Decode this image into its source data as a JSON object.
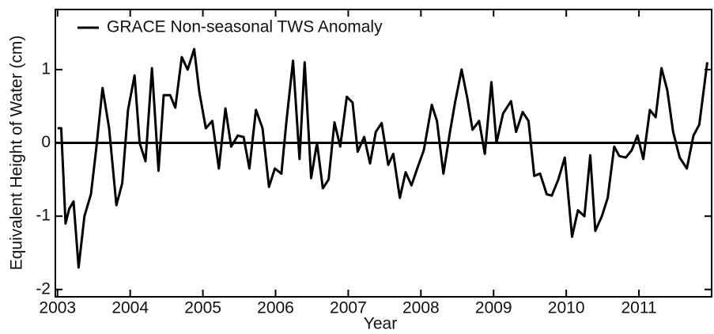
{
  "chart_data": {
    "type": "line",
    "xlabel": "Year",
    "ylabel": "Equivalent Height of Water (cm)",
    "xlim": [
      2002.97,
      2012.0
    ],
    "ylim": [
      -2.1,
      1.82
    ],
    "xticks": [
      2003,
      2004,
      2005,
      2006,
      2007,
      2008,
      2009,
      2010,
      2011
    ],
    "yticks": [
      -2,
      -1,
      0,
      1
    ],
    "hline": 0,
    "legend": "upper left",
    "series": [
      {
        "name": "GRACE Non-seasonal TWS Anomaly",
        "color": "#000000",
        "x": [
          2003.0,
          2003.05,
          2003.11,
          2003.16,
          2003.22,
          2003.29,
          2003.37,
          2003.46,
          2003.53,
          2003.62,
          2003.71,
          2003.81,
          2003.89,
          2003.97,
          2004.06,
          2004.13,
          2004.21,
          2004.3,
          2004.39,
          2004.46,
          2004.55,
          2004.62,
          2004.71,
          2004.79,
          2004.88,
          2004.95,
          2005.04,
          2005.13,
          2005.22,
          2005.31,
          2005.39,
          2005.48,
          2005.56,
          2005.64,
          2005.73,
          2005.82,
          2005.91,
          2005.99,
          2006.08,
          2006.15,
          2006.24,
          2006.33,
          2006.4,
          2006.49,
          2006.57,
          2006.65,
          2006.73,
          2006.81,
          2006.89,
          2006.98,
          2007.06,
          2007.13,
          2007.22,
          2007.3,
          2007.38,
          2007.46,
          2007.55,
          2007.62,
          2007.71,
          2007.79,
          2007.87,
          2007.95,
          2008.04,
          2008.15,
          2008.22,
          2008.31,
          2008.4,
          2008.47,
          2008.56,
          2008.64,
          2008.71,
          2008.8,
          2008.88,
          2008.97,
          2009.04,
          2009.13,
          2009.24,
          2009.31,
          2009.4,
          2009.48,
          2009.56,
          2009.64,
          2009.73,
          2009.8,
          2009.89,
          2009.98,
          2010.08,
          2010.16,
          2010.25,
          2010.33,
          2010.4,
          2010.49,
          2010.57,
          2010.66,
          2010.73,
          2010.82,
          2010.9,
          2010.98,
          2011.06,
          2011.15,
          2011.23,
          2011.31,
          2011.39,
          2011.47,
          2011.56,
          2011.66,
          2011.75,
          2011.83,
          2011.94
        ],
        "values": [
          0.2,
          0.2,
          -1.1,
          -0.9,
          -0.8,
          -1.7,
          -1.0,
          -0.7,
          -0.1,
          0.75,
          0.2,
          -0.85,
          -0.55,
          0.45,
          0.92,
          0.0,
          -0.25,
          1.02,
          -0.38,
          0.65,
          0.65,
          0.48,
          1.17,
          1.0,
          1.28,
          0.7,
          0.2,
          0.3,
          -0.35,
          0.47,
          -0.05,
          0.1,
          0.08,
          -0.35,
          0.45,
          0.2,
          -0.6,
          -0.35,
          -0.42,
          0.3,
          1.12,
          -0.22,
          1.1,
          -0.48,
          0.0,
          -0.62,
          -0.5,
          0.28,
          -0.05,
          0.63,
          0.55,
          -0.12,
          0.08,
          -0.28,
          0.15,
          0.27,
          -0.3,
          -0.15,
          -0.75,
          -0.4,
          -0.58,
          -0.35,
          -0.1,
          0.52,
          0.3,
          -0.42,
          0.15,
          0.55,
          1.0,
          0.6,
          0.18,
          0.3,
          -0.15,
          0.83,
          0.0,
          0.4,
          0.57,
          0.15,
          0.42,
          0.3,
          -0.45,
          -0.42,
          -0.7,
          -0.72,
          -0.5,
          -0.2,
          -1.28,
          -0.92,
          -1.0,
          -0.17,
          -1.2,
          -1.0,
          -0.75,
          -0.05,
          -0.18,
          -0.2,
          -0.1,
          0.1,
          -0.22,
          0.45,
          0.35,
          1.02,
          0.72,
          0.15,
          -0.2,
          -0.35,
          0.1,
          0.25,
          1.1
        ]
      }
    ]
  }
}
